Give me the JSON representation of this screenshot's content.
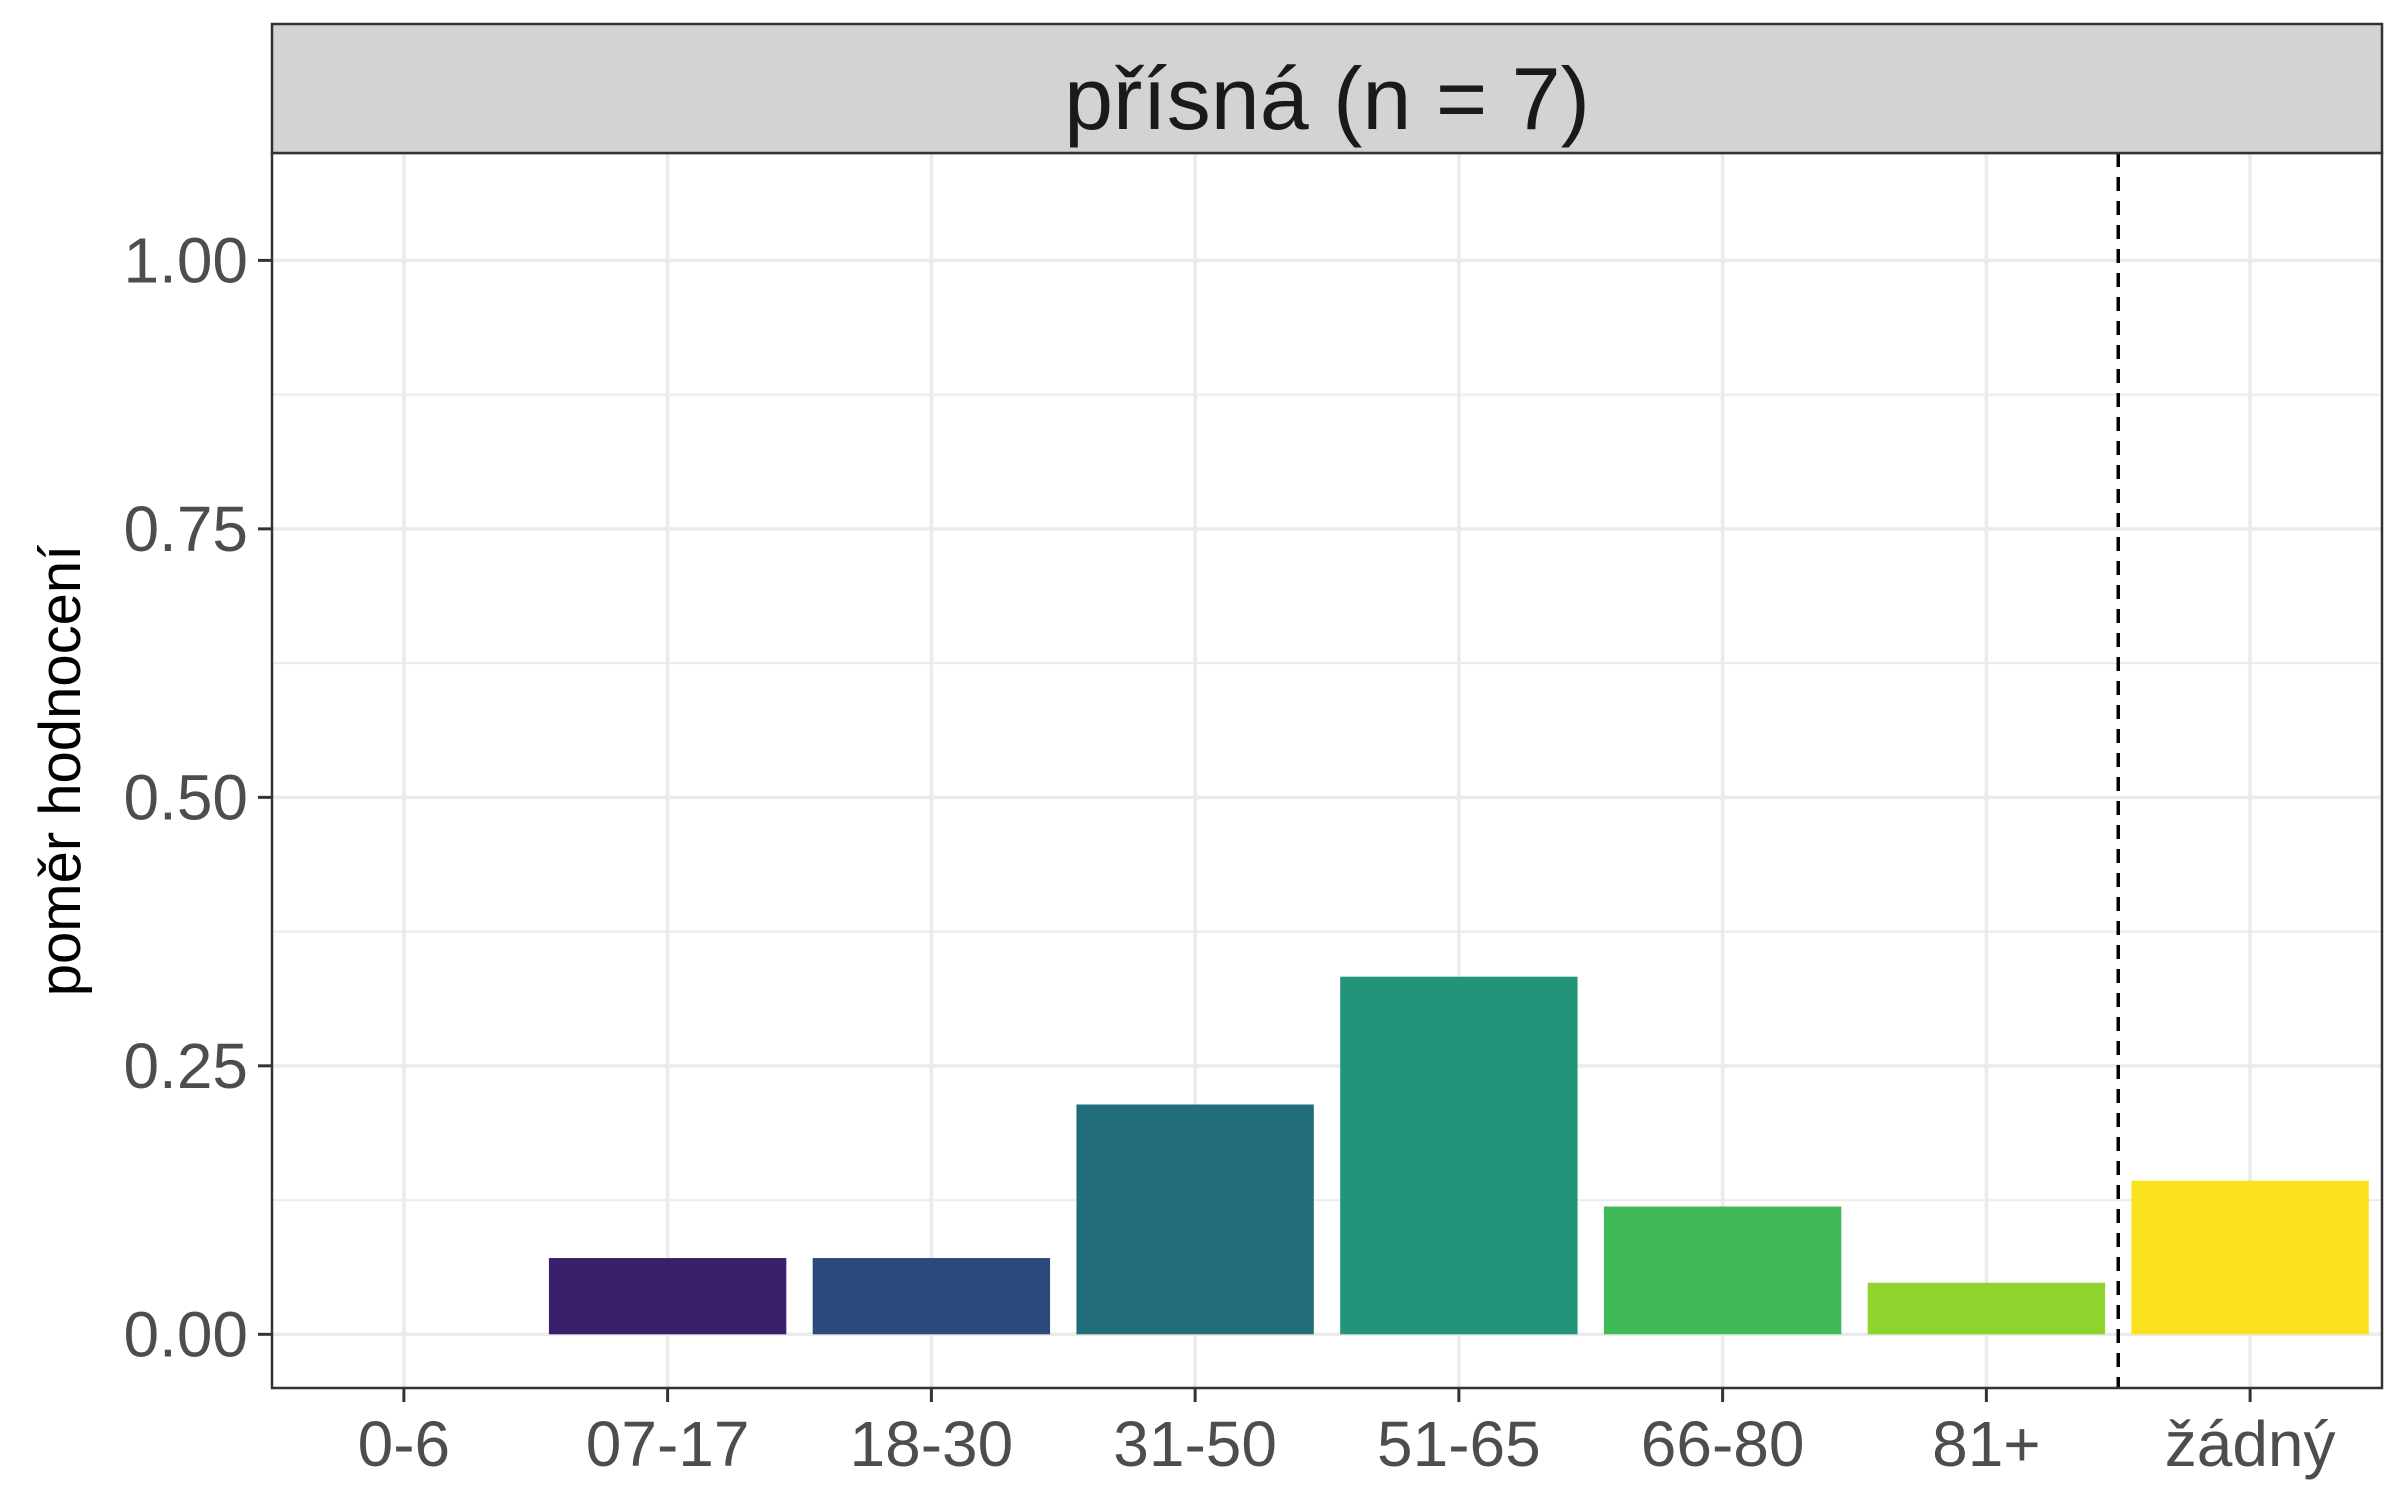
{
  "chart_data": {
    "type": "bar",
    "title": "přísná (n = 7)",
    "xlabel": "",
    "ylabel": "poměr hodnocení",
    "categories": [
      "0-6",
      "07-17",
      "18-30",
      "31-50",
      "51-65",
      "66-80",
      "81+",
      "žádný"
    ],
    "values": [
      0.0,
      0.071,
      0.071,
      0.214,
      0.333,
      0.119,
      0.048,
      0.143
    ],
    "bar_colors": [
      "#440154",
      "#3b1f6b",
      "#2a4a7b",
      "#226d7c",
      "#22947a",
      "#42b958",
      "#8fd42c",
      "#fae21e"
    ],
    "ylim": [
      -0.05,
      1.1
    ],
    "yticks": [
      0.0,
      0.25,
      0.5,
      0.75,
      1.0
    ],
    "ytick_labels": [
      "0.00",
      "0.25",
      "0.50",
      "0.75",
      "1.00"
    ],
    "separator_after_category": "81+",
    "separator_style": "dashed",
    "grid": true,
    "strip_color": "#d3d3d3"
  }
}
